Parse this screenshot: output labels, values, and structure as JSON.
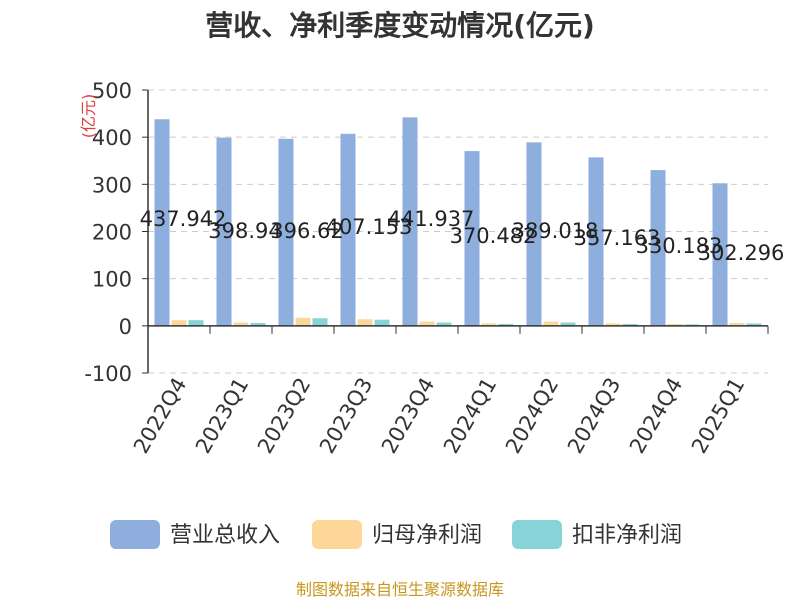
{
  "title": "营收、净利季度变动情况(亿元)",
  "source": "制图数据来自恒生聚源数据库",
  "colors": {
    "revenue": "#8eaedd",
    "net_profit": "#fdd79a",
    "deducted_profit": "#86d4d8",
    "unit": "#e03c3c",
    "grid": "#cccccc",
    "source": "#c8961e"
  },
  "chart_data": {
    "type": "bar",
    "title": "营收、净利季度变动情况(亿元)",
    "ylabel": "(亿元)",
    "xlabel": "",
    "ylim": [
      -100,
      500
    ],
    "yticks": [
      -100,
      0,
      100,
      200,
      300,
      400,
      500
    ],
    "grid": true,
    "legend_position": "bottom",
    "categories": [
      "2022Q4",
      "2023Q1",
      "2023Q2",
      "2023Q3",
      "2023Q4",
      "2024Q1",
      "2024Q2",
      "2024Q3",
      "2024Q4",
      "2025Q1"
    ],
    "series": [
      {
        "name": "营业总收入",
        "color": "#8eaedd",
        "values": [
          437.942,
          398.94,
          396.62,
          407.153,
          441.937,
          370.482,
          389.018,
          357.163,
          330.183,
          302.296
        ],
        "labels": [
          "437.942",
          "398.94",
          "396.62",
          "407.153",
          "441.937",
          "370.482",
          "389.018",
          "357.163",
          "330.183",
          "302.296"
        ]
      },
      {
        "name": "归母净利润",
        "color": "#fdd79a",
        "values": [
          12,
          7,
          17,
          14,
          9,
          5,
          9,
          5,
          4,
          6
        ]
      },
      {
        "name": "扣非净利润",
        "color": "#86d4d8",
        "values": [
          12,
          6,
          16,
          13,
          7,
          4,
          7,
          4,
          3,
          5
        ]
      }
    ]
  }
}
